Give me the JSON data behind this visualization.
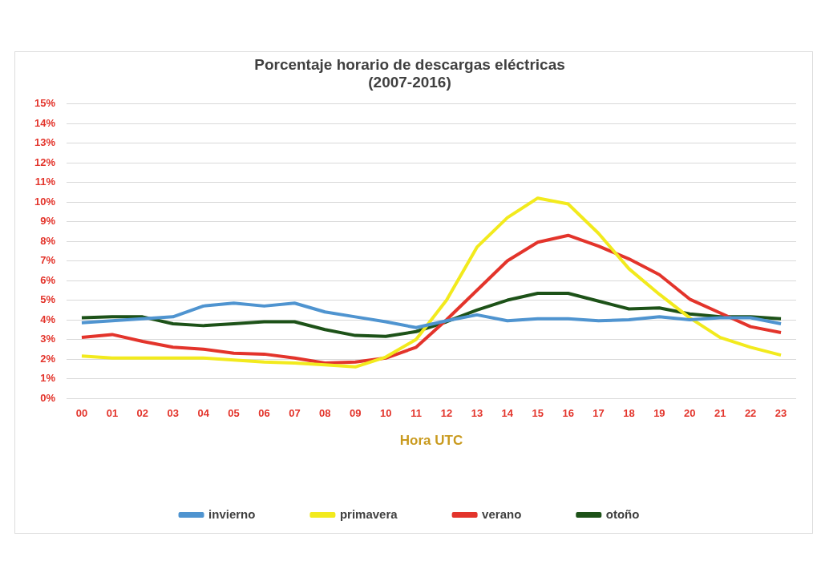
{
  "chart_data": {
    "type": "line",
    "title": [
      "Porcentaje horario de descargas eléctricas",
      "(2007-2016)"
    ],
    "xlabel": "Hora UTC",
    "categories": [
      "00",
      "01",
      "02",
      "03",
      "04",
      "05",
      "06",
      "07",
      "08",
      "09",
      "10",
      "11",
      "12",
      "13",
      "14",
      "15",
      "16",
      "17",
      "18",
      "19",
      "20",
      "21",
      "22",
      "23"
    ],
    "series": [
      {
        "name": "invierno",
        "color": "#4f94d0",
        "values": [
          3.85,
          3.95,
          4.05,
          4.15,
          4.7,
          4.85,
          4.7,
          4.85,
          4.4,
          4.15,
          3.9,
          3.6,
          3.95,
          4.25,
          3.95,
          4.05,
          4.05,
          3.95,
          4.0,
          4.15,
          4.0,
          4.1,
          4.1,
          3.8
        ]
      },
      {
        "name": "primavera",
        "color": "#f2ea1d",
        "values": [
          2.15,
          2.05,
          2.05,
          2.05,
          2.05,
          1.95,
          1.85,
          1.8,
          1.7,
          1.6,
          2.1,
          3.0,
          5.0,
          7.7,
          9.2,
          10.2,
          9.9,
          8.4,
          6.6,
          5.3,
          4.1,
          3.1,
          2.6,
          2.2
        ]
      },
      {
        "name": "verano",
        "color": "#e3342b",
        "values": [
          3.1,
          3.25,
          2.9,
          2.6,
          2.5,
          2.3,
          2.25,
          2.05,
          1.8,
          1.85,
          2.05,
          2.6,
          4.0,
          5.5,
          7.0,
          7.95,
          8.3,
          7.75,
          7.1,
          6.3,
          5.05,
          4.35,
          3.65,
          3.35
        ]
      },
      {
        "name": "otoño",
        "color": "#1d5218",
        "values": [
          4.1,
          4.15,
          4.15,
          3.8,
          3.7,
          3.8,
          3.9,
          3.9,
          3.5,
          3.2,
          3.15,
          3.4,
          3.9,
          4.5,
          5.0,
          5.35,
          5.35,
          4.95,
          4.55,
          4.6,
          4.3,
          4.15,
          4.15,
          4.05
        ]
      }
    ],
    "ylim": [
      0,
      15
    ],
    "yticks": [
      {
        "value": 0,
        "label": "0%"
      },
      {
        "value": 1,
        "label": "1%"
      },
      {
        "value": 2,
        "label": "2%"
      },
      {
        "value": 3,
        "label": "3%"
      },
      {
        "value": 4,
        "label": "4%"
      },
      {
        "value": 5,
        "label": "5%"
      },
      {
        "value": 6,
        "label": "6%"
      },
      {
        "value": 7,
        "label": "7%"
      },
      {
        "value": 8,
        "label": "8%"
      },
      {
        "value": 9,
        "label": "9%"
      },
      {
        "value": 10,
        "label": "10%"
      },
      {
        "value": 11,
        "label": "11%"
      },
      {
        "value": 12,
        "label": "12%"
      },
      {
        "value": 13,
        "label": "13%"
      },
      {
        "value": 14,
        "label": "14%"
      },
      {
        "value": 15,
        "label": "15%"
      }
    ],
    "grid": "y",
    "legend": "bottom",
    "marker": "none",
    "line_style": "solid"
  }
}
